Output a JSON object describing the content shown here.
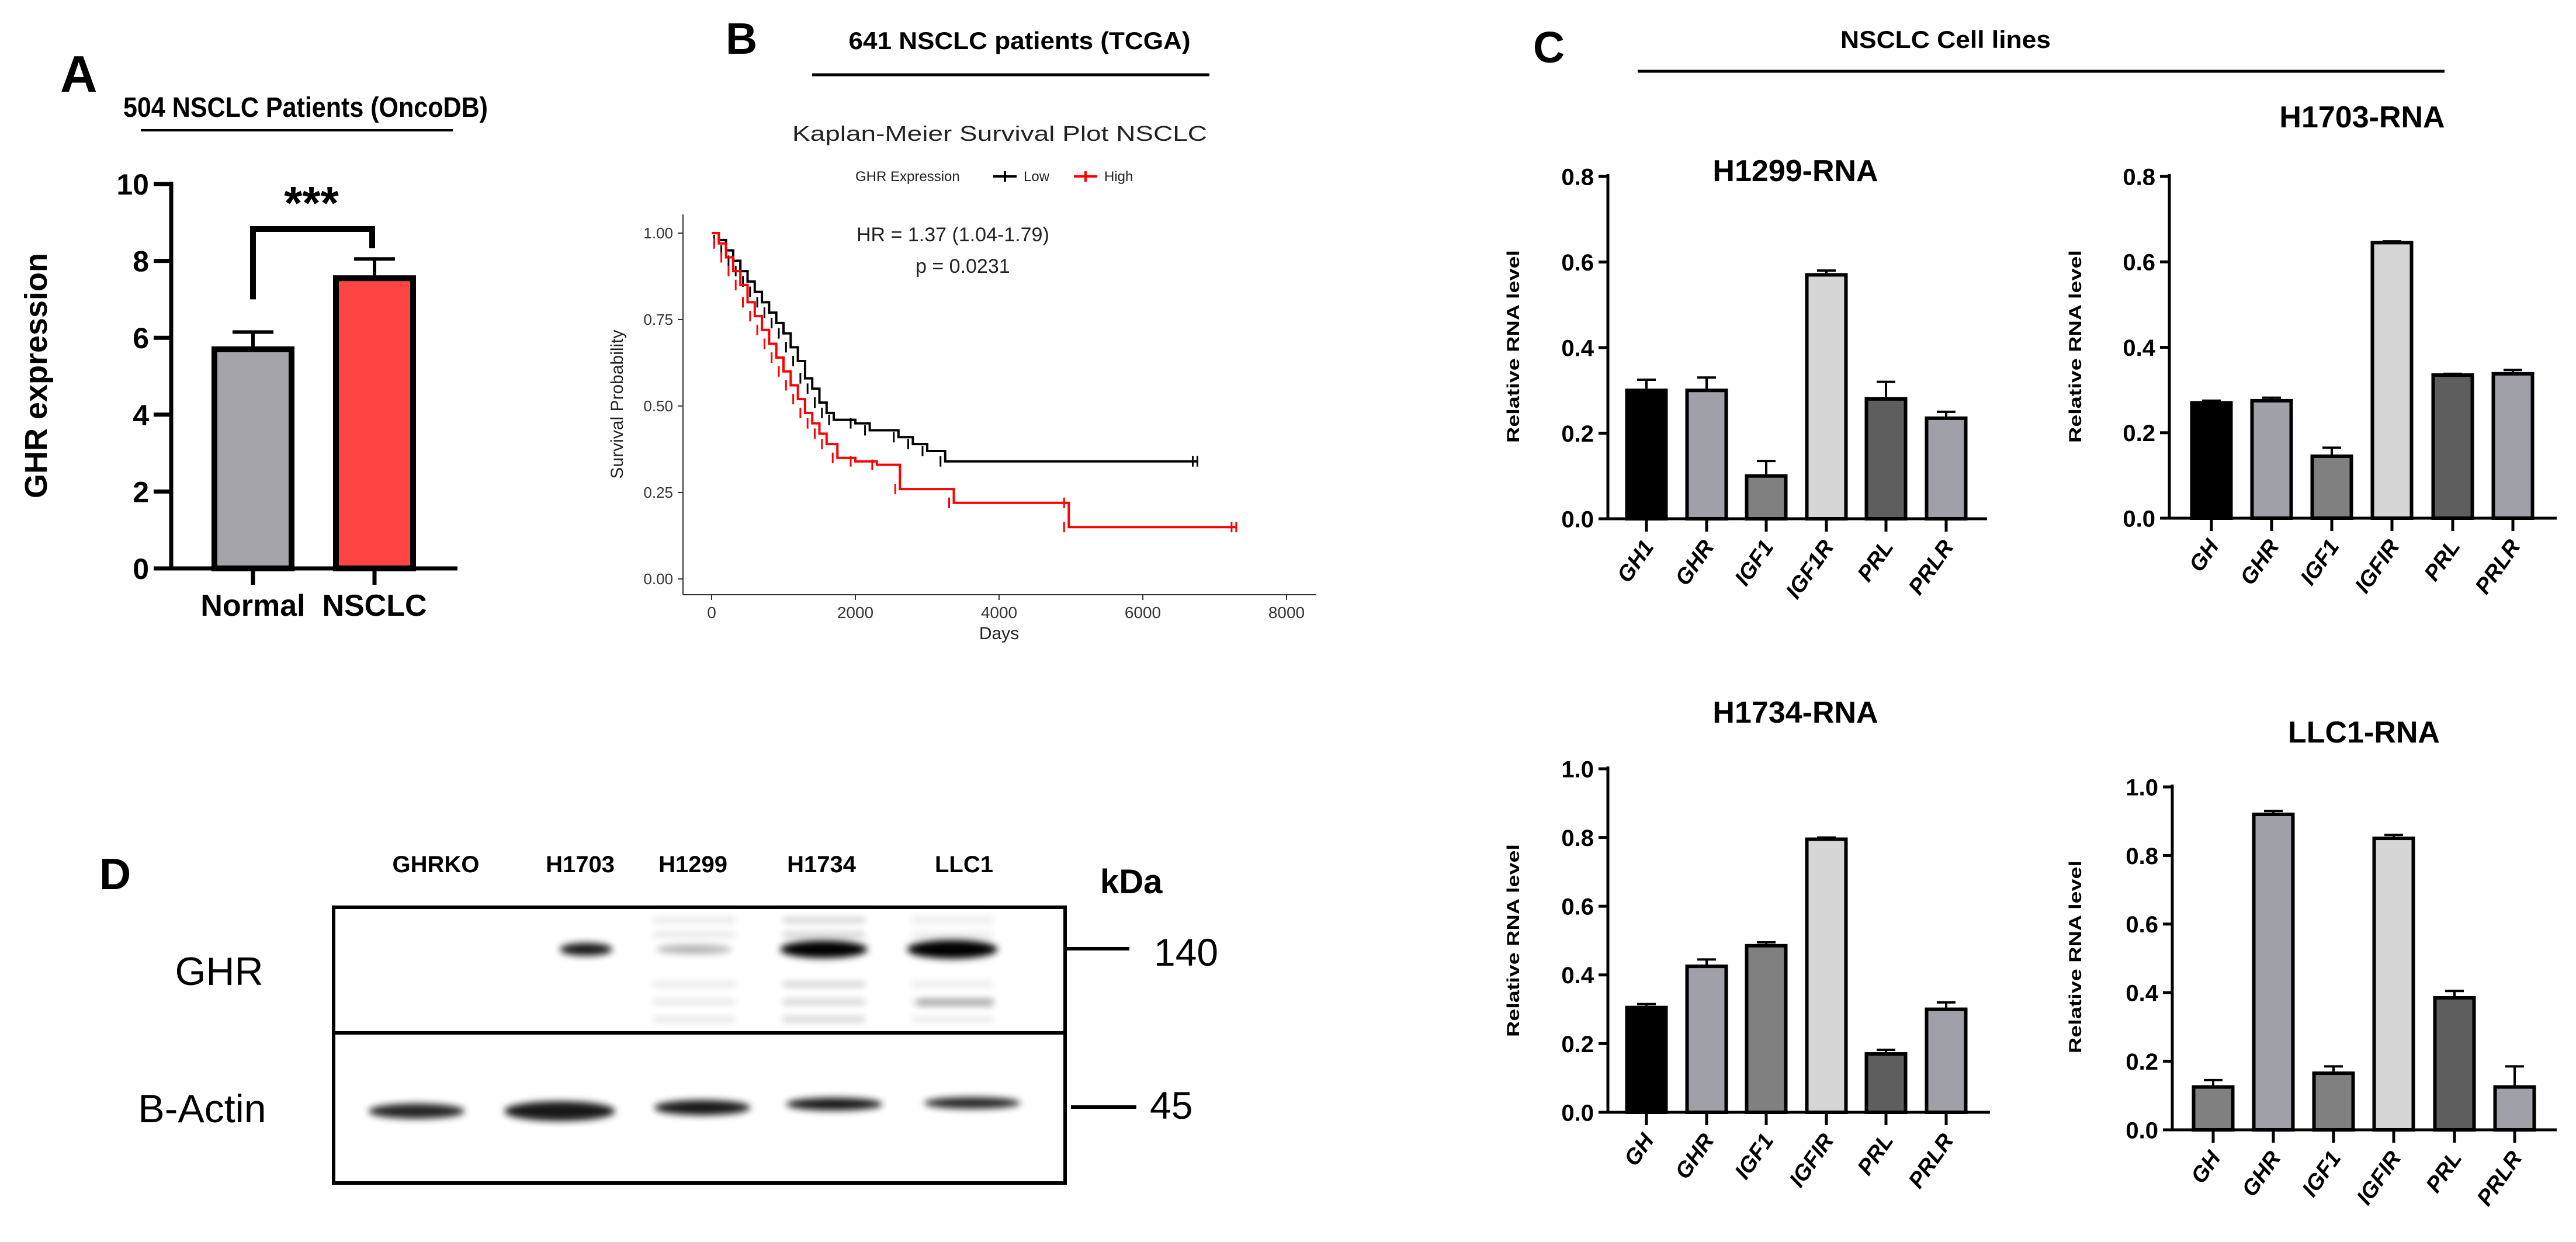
{
  "panels": {
    "A": {
      "letter": "A"
    },
    "B": {
      "letter": "B",
      "header": "641 NSCLC  patients (TCGA)"
    },
    "C": {
      "letter": "C",
      "header": "NSCLC  Cell lines"
    },
    "D": {
      "letter": "D"
    }
  },
  "colors": {
    "normal": "#a4a4aa",
    "nsclc": "#ff4444",
    "km_low": "#000000",
    "km_high": "#ff0000",
    "gh": "#000000",
    "ghr": "#a0a0a8",
    "igf1": "#808080",
    "igf1r": "#d6d6d6",
    "prl": "#5e5e5e",
    "prlr": "#a0a0a8"
  },
  "chart_data": [
    {
      "type": "bar",
      "title": "504 NSCLC Patients (OncoDB)",
      "categories": [
        "Normal",
        "NSCLC"
      ],
      "values": [
        5.7,
        7.55
      ],
      "errors": [
        0.45,
        0.5
      ],
      "colors": [
        "#a4a4aa",
        "#ff4444"
      ],
      "xlabel": "",
      "ylabel": "GHR expression",
      "ylim": [
        0,
        10
      ],
      "yticks": [
        "0",
        "2",
        "4",
        "6",
        "8",
        "10"
      ],
      "significance": "***"
    },
    {
      "type": "line",
      "title": "Kaplan-Meier Survival Plot NSCLC",
      "legend_title": "GHR Expression",
      "legend_placement": "top",
      "series": [
        {
          "name": "Low",
          "color": "#000000",
          "points": [
            [
              0,
              1
            ],
            [
              100,
              0.98
            ],
            [
              200,
              0.95
            ],
            [
              300,
              0.92
            ],
            [
              400,
              0.89
            ],
            [
              500,
              0.86
            ],
            [
              600,
              0.83
            ],
            [
              700,
              0.8
            ],
            [
              800,
              0.77
            ],
            [
              900,
              0.74
            ],
            [
              1000,
              0.71
            ],
            [
              1100,
              0.67
            ],
            [
              1200,
              0.63
            ],
            [
              1300,
              0.58
            ],
            [
              1400,
              0.55
            ],
            [
              1500,
              0.51
            ],
            [
              1600,
              0.48
            ],
            [
              1700,
              0.46
            ],
            [
              2000,
              0.45
            ],
            [
              2200,
              0.43
            ],
            [
              2600,
              0.41
            ],
            [
              2800,
              0.39
            ],
            [
              3000,
              0.37
            ],
            [
              3250,
              0.34
            ],
            [
              6760,
              0.34
            ]
          ]
        },
        {
          "name": "High",
          "color": "#ff0000",
          "points": [
            [
              0,
              1
            ],
            [
              100,
              0.97
            ],
            [
              200,
              0.93
            ],
            [
              300,
              0.89
            ],
            [
              400,
              0.85
            ],
            [
              500,
              0.8
            ],
            [
              600,
              0.76
            ],
            [
              700,
              0.72
            ],
            [
              800,
              0.68
            ],
            [
              900,
              0.64
            ],
            [
              1000,
              0.6
            ],
            [
              1100,
              0.56
            ],
            [
              1200,
              0.52
            ],
            [
              1300,
              0.48
            ],
            [
              1400,
              0.45
            ],
            [
              1500,
              0.42
            ],
            [
              1600,
              0.39
            ],
            [
              1750,
              0.35
            ],
            [
              2000,
              0.34
            ],
            [
              2300,
              0.33
            ],
            [
              2620,
              0.26
            ],
            [
              3370,
              0.22
            ],
            [
              4970,
              0.22
            ],
            [
              4970,
              0.15
            ],
            [
              7300,
              0.15
            ]
          ]
        }
      ],
      "annotations": [
        "HR = 1.37 (1.04-1.79)",
        "p = 0.0231"
      ],
      "xlabel": "Days",
      "ylabel": "Survival Probability",
      "xlim": [
        0,
        8000
      ],
      "xticks": [
        "0",
        "2000",
        "4000",
        "6000",
        "8000"
      ],
      "ylim": [
        0,
        1
      ],
      "yticks": [
        "0.00",
        "0.25",
        "0.50",
        "0.75",
        "1.00"
      ]
    },
    {
      "type": "bar",
      "title": "H1299-RNA",
      "categories": [
        "GH1",
        "GHR",
        "IGF1",
        "IGF1R",
        "PRL",
        "PRLR"
      ],
      "values": [
        0.3,
        0.3,
        0.1,
        0.57,
        0.28,
        0.235
      ],
      "errors": [
        0.025,
        0.03,
        0.035,
        0.01,
        0.04,
        0.015
      ],
      "colors": [
        "#000000",
        "#a0a0a8",
        "#808080",
        "#d6d6d6",
        "#5e5e5e",
        "#a0a0a8"
      ],
      "ylabel": "Relative RNA level",
      "ylim": [
        0,
        0.8
      ],
      "yticks": [
        "0.0",
        "0.2",
        "0.4",
        "0.6",
        "0.8"
      ]
    },
    {
      "type": "bar",
      "title": "H1703-RNA",
      "categories": [
        "GH",
        "GHR",
        "IGF1",
        "IGFIR",
        "PRL",
        "PRLR"
      ],
      "values": [
        0.27,
        0.275,
        0.145,
        0.645,
        0.335,
        0.338
      ],
      "errors": [
        0.005,
        0.007,
        0.02,
        0.003,
        0.003,
        0.009
      ],
      "colors": [
        "#000000",
        "#a0a0a8",
        "#808080",
        "#d6d6d6",
        "#5e5e5e",
        "#a0a0a8"
      ],
      "ylabel": "Relative RNA level",
      "ylim": [
        0,
        0.8
      ],
      "yticks": [
        "0.0",
        "0.2",
        "0.4",
        "0.6",
        "0.8"
      ]
    },
    {
      "type": "bar",
      "title": "H1734-RNA",
      "categories": [
        "GH",
        "GHR",
        "IGF1",
        "IGFIR",
        "PRL",
        "PRLR"
      ],
      "values": [
        0.305,
        0.425,
        0.485,
        0.795,
        0.17,
        0.3
      ],
      "errors": [
        0.01,
        0.02,
        0.01,
        0.005,
        0.012,
        0.02
      ],
      "colors": [
        "#000000",
        "#a0a0a8",
        "#808080",
        "#d6d6d6",
        "#5e5e5e",
        "#a0a0a8"
      ],
      "ylabel": "Relative RNA level",
      "ylim": [
        0,
        1.0
      ],
      "yticks": [
        "0.0",
        "0.2",
        "0.4",
        "0.6",
        "0.8",
        "1.0"
      ]
    },
    {
      "type": "bar",
      "title": "LLC1-RNA",
      "categories": [
        "GH",
        "GHR",
        "IGF1",
        "IGFIR",
        "PRL",
        "PRLR"
      ],
      "values": [
        0.125,
        0.92,
        0.165,
        0.85,
        0.385,
        0.125
      ],
      "errors": [
        0.02,
        0.01,
        0.02,
        0.01,
        0.02,
        0.06
      ],
      "colors": [
        "#808080",
        "#a0a0a8",
        "#808080",
        "#d6d6d6",
        "#5e5e5e",
        "#a0a0a8"
      ],
      "ylabel": "Relative RNA level",
      "ylim": [
        0,
        1.0
      ],
      "yticks": [
        "0.0",
        "0.2",
        "0.4",
        "0.6",
        "0.8",
        "1.0"
      ]
    }
  ],
  "western_blot": {
    "lanes": [
      "GHRKO",
      "H1703",
      "H1299",
      "H1734",
      "LLC1"
    ],
    "kda_label": "kDa",
    "rows": [
      {
        "label": "GHR",
        "marker": "140",
        "band_intensity": [
          0.0,
          0.9,
          0.3,
          1.0,
          1.0
        ]
      },
      {
        "label": "B-Actin",
        "marker": "45",
        "band_intensity": [
          0.85,
          0.9,
          0.9,
          0.9,
          0.85
        ]
      }
    ]
  }
}
